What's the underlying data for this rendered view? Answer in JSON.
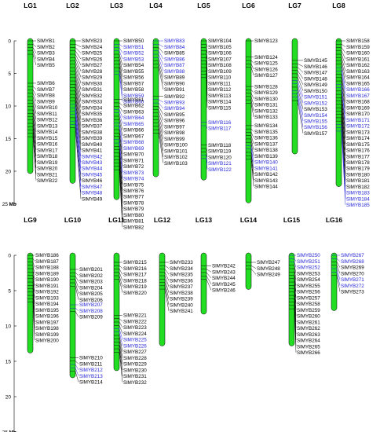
{
  "colors": {
    "chromosome": "#22dd22",
    "chromosome_stroke": "#000000",
    "gene_default": "#000000",
    "gene_highlight": "#1f1fd6"
  },
  "scale": {
    "unit": "Mb",
    "ticks": [
      0,
      5,
      10,
      15,
      20,
      25
    ]
  },
  "panels": [
    {
      "linkage_groups": [
        {
          "name": "LG1",
          "length": 20.0,
          "markers": [
            {
              "pos": 0.0,
              "genes": [
                "SlMYB1",
                "SlMYB2",
                "SlMYB3",
                "SlMYB4",
                "SlMYB5"
              ]
            },
            {
              "pos": 6.5,
              "genes": [
                "SlMYB6",
                "SlMYB7",
                "SlMYB8",
                "SlMYB9",
                "SlMYB10",
                "SlMYB11",
                "SlMYB12",
                "SlMYB13",
                "SlMYB14",
                "SlMYB15",
                "SlMYB16",
                "SlMYB17",
                "SlMYB18",
                "SlMYB19",
                "SlMYB20",
                "SlMYB21",
                "SlMYB22"
              ]
            }
          ]
        },
        {
          "name": "LG2",
          "length": 21.5,
          "markers": [
            {
              "pos": 0.0,
              "genes": [
                "SlMYB23",
                "SlMYB24",
                "SlMYB25",
                "SlMYB26",
                "SlMYB27",
                "SlMYB28",
                "SlMYB29",
                "SlMYB30",
                "SlMYB31",
                "SlMYB32",
                "SlMYB33",
                "SlMYB34",
                "SlMYB35",
                "SlMYB36",
                "SlMYB37",
                "SlMYB38",
                "SlMYB39",
                "SlMYB40",
                "SlMYB41",
                "SlMYB42",
                "SlMYB43",
                "SlMYB44",
                "SlMYB45",
                "SlMYB46",
                "SlMYB47",
                "SlMYB48",
                "SlMYB49"
              ],
              "blue": [
                "SlMYB42",
                "SlMYB43",
                "SlMYB44",
                "SlMYB45",
                "SlMYB47",
                "SlMYB48"
              ]
            }
          ]
        },
        {
          "name": "LG3",
          "length": 24.0,
          "markers": [
            {
              "pos": 0.0,
              "genes": [
                "SlMYB50",
                "SlMYB51",
                "SlMYB52",
                "SlMYB53",
                "SlMYB54",
                "SlMYB55",
                "SlMYB56",
                "SlMYB57",
                "SlMYB58",
                "SlMYB59",
                "SlMYB60"
              ],
              "blue": [
                "SlMYB51",
                "SlMYB52",
                "SlMYB53",
                "SlMYB59",
                "SlMYB60"
              ]
            },
            {
              "pos": 9.0,
              "genes": [
                "SlMYB61",
                "SlMYB62",
                "SlMYB63",
                "SlMYB64",
                "SlMYB65",
                "SlMYB66",
                "SlMYB67",
                "SlMYB68",
                "SlMYB69",
                "SlMYB70",
                "SlMYB71",
                "SlMYB72",
                "SlMYB73",
                "SlMYB74",
                "SlMYB75",
                "SlMYB76",
                "SlMYB77",
                "SlMYB78",
                "SlMYB79",
                "SlMYB80",
                "SlMYB81",
                "SlMYB82"
              ],
              "blue": [
                "SlMYB64",
                "SlMYB65",
                "SlMYB68",
                "SlMYB69",
                "SlMYB73",
                "SlMYB74"
              ]
            }
          ]
        },
        {
          "name": "LG4",
          "length": 20.5,
          "markers": [
            {
              "pos": 0.0,
              "genes": [
                "SlMYB83",
                "SlMYB84",
                "SlMYB85",
                "SlMYB86",
                "SlMYB87",
                "SlMYB88",
                "SlMYB89",
                "SlMYB90",
                "SlMYB91"
              ],
              "blue": [
                "SlMYB83",
                "SlMYB84",
                "SlMYB86",
                "SlMYB87",
                "SlMYB88"
              ]
            },
            {
              "pos": 8.5,
              "genes": [
                "SlMYB92",
                "SlMYB93",
                "SlMYB94",
                "SlMYB95",
                "SlMYB96",
                "SlMYB97",
                "SlMYB98",
                "SlMYB99",
                "SlMYB100",
                "SlMYB101",
                "SlMYB102",
                "SlMYB103"
              ],
              "blue": [
                "SlMYB93",
                "SlMYB94"
              ]
            }
          ]
        },
        {
          "name": "LG5",
          "length": 21.0,
          "markers": [
            {
              "pos": 0.0,
              "genes": [
                "SlMYB104",
                "SlMYB105",
                "SlMYB106",
                "SlMYB107",
                "SlMYB108",
                "SlMYB109",
                "SlMYB110",
                "SlMYB111",
                "SlMYB112",
                "SlMYB113",
                "SlMYB114",
                "SlMYB115"
              ]
            },
            {
              "pos": 12.5,
              "genes": [
                "SlMYB116",
                "SlMYB117"
              ],
              "blue": [
                "SlMYB116",
                "SlMYB117"
              ]
            },
            {
              "pos": 16.0,
              "genes": [
                "SlMYB118",
                "SlMYB119",
                "SlMYB120",
                "SlMYB121",
                "SlMYB122"
              ],
              "blue": [
                "SlMYB121",
                "SlMYB122"
              ]
            }
          ]
        },
        {
          "name": "LG6",
          "length": 24.5,
          "markers": [
            {
              "pos": 0.0,
              "genes": [
                "SlMYB123"
              ]
            },
            {
              "pos": 2.5,
              "genes": [
                "SlMYB124",
                "SlMYB125",
                "SlMYB126",
                "SlMYB127"
              ]
            },
            {
              "pos": 7.0,
              "genes": [
                "SlMYB128",
                "SlMYB129",
                "SlMYB130",
                "SlMYB131",
                "SlMYB132",
                "SlMYB133"
              ]
            },
            {
              "pos": 13.0,
              "genes": [
                "SlMYB134",
                "SlMYB135",
                "SlMYB136",
                "SlMYB137",
                "SlMYB138",
                "SlMYB139",
                "SlMYB140",
                "SlMYB141",
                "SlMYB142",
                "SlMYB143",
                "SlMYB144"
              ],
              "blue": [
                "SlMYB140",
                "SlMYB141"
              ]
            }
          ]
        },
        {
          "name": "LG7",
          "length": 17.0,
          "markers": [
            {
              "pos": 3.0,
              "genes": [
                "SlMYB145",
                "SlMYB146",
                "SlMYB147",
                "SlMYB148",
                "SlMYB149",
                "SlMYB150",
                "SlMYB151",
                "SlMYB152",
                "SlMYB153",
                "SlMYB154",
                "SlMYB155",
                "SlMYB156",
                "SlMYB157"
              ],
              "blue": [
                "SlMYB151",
                "SlMYB152",
                "SlMYB154",
                "SlMYB155",
                "SlMYB156"
              ]
            }
          ]
        },
        {
          "name": "LG8",
          "length": 22.0,
          "markers": [
            {
              "pos": 0.0,
              "genes": [
                "SlMYB158",
                "SlMYB159",
                "SlMYB160",
                "SlMYB161",
                "SlMYB162",
                "SlMYB163",
                "SlMYB164",
                "SlMYB165",
                "SlMYB166",
                "SlMYB167",
                "SlMYB168",
                "SlMYB169",
                "SlMYB170",
                "SlMYB171",
                "SlMYB172",
                "SlMYB173",
                "SlMYB174",
                "SlMYB175",
                "SlMYB176",
                "SlMYB177",
                "SlMYB178",
                "SlMYB179",
                "SlMYB180",
                "SlMYB181",
                "SlMYB182",
                "SlMYB183",
                "SlMYB184",
                "SlMYB185"
              ],
              "blue": [
                "SlMYB166",
                "SlMYB167",
                "SlMYB171",
                "SlMYB172",
                "SlMYB183",
                "SlMYB184",
                "SlMYB185"
              ]
            }
          ]
        }
      ]
    },
    {
      "linkage_groups": [
        {
          "name": "LG9",
          "length": 13.5,
          "markers": [
            {
              "pos": 0.0,
              "genes": [
                "SlMYB186",
                "SlMYB187",
                "SlMYB188",
                "SlMYB189",
                "SlMYB190",
                "SlMYB191",
                "SlMYB192",
                "SlMYB193",
                "SlMYB194",
                "SlMYB195",
                "SlMYB196",
                "SlMYB197",
                "SlMYB198",
                "SlMYB199",
                "SlMYB200"
              ]
            }
          ]
        },
        {
          "name": "LG10",
          "length": 17.0,
          "markers": [
            {
              "pos": 2.0,
              "genes": [
                "SlMYB201",
                "SlMYB202",
                "SlMYB203",
                "SlMYB204",
                "SlMYB205",
                "SlMYB206"
              ]
            },
            {
              "pos": 7.0,
              "genes": [
                "SlMYB207",
                "SlMYB208",
                "SlMYB209"
              ],
              "blue": [
                "SlMYB207",
                "SlMYB208"
              ]
            },
            {
              "pos": 14.5,
              "genes": [
                "SlMYB210",
                "SlMYB211",
                "SlMYB212",
                "SlMYB213",
                "SlMYB214"
              ],
              "blue": [
                "SlMYB212",
                "SlMYB213"
              ]
            }
          ]
        },
        {
          "name": "LG11",
          "length": 16.0,
          "markers": [
            {
              "pos": 1.0,
              "genes": [
                "SlMYB215",
                "SlMYB216",
                "SlMYB217",
                "SlMYB218",
                "SlMYB219",
                "SlMYB220"
              ]
            },
            {
              "pos": 8.5,
              "genes": [
                "SlMYB221",
                "SlMYB222",
                "SlMYB223",
                "SlMYB224",
                "SlMYB225",
                "SlMYB226",
                "SlMYB227",
                "SlMYB228",
                "SlMYB229",
                "SlMYB230",
                "SlMYB231",
                "SlMYB232"
              ],
              "blue": [
                "SlMYB225",
                "SlMYB226"
              ]
            }
          ]
        },
        {
          "name": "LG12",
          "length": 12.5,
          "markers": [
            {
              "pos": 1.0,
              "genes": [
                "SlMYB233",
                "SlMYB234",
                "SlMYB235",
                "SlMYB236",
                "SlMYB237",
                "SlMYB238",
                "SlMYB239",
                "SlMYB240",
                "SlMYB241"
              ]
            }
          ]
        },
        {
          "name": "LG13",
          "length": 8.0,
          "markers": [
            {
              "pos": 1.5,
              "genes": [
                "SlMYB242",
                "SlMYB243",
                "SlMYB244",
                "SlMYB245",
                "SlMYB246"
              ]
            }
          ]
        },
        {
          "name": "LG14",
          "length": 4.5,
          "markers": [
            {
              "pos": 1.0,
              "genes": [
                "SlMYB247",
                "SlMYB248",
                "SlMYB249"
              ]
            }
          ]
        },
        {
          "name": "LG15",
          "length": 12.5,
          "markers": [
            {
              "pos": 0.0,
              "genes": [
                "SlMYB250",
                "SlMYB251",
                "SlMYB252",
                "SlMYB253",
                "SlMYB254",
                "SlMYB255",
                "SlMYB256",
                "SlMYB257",
                "SlMYB258",
                "SlMYB259",
                "SlMYB260",
                "SlMYB261",
                "SlMYB262",
                "SlMYB263",
                "SlMYB264",
                "SlMYB265",
                "SlMYB266"
              ],
              "blue": [
                "SlMYB250",
                "SlMYB251",
                "SlMYB252"
              ]
            }
          ]
        },
        {
          "name": "LG16",
          "length": 7.5,
          "markers": [
            {
              "pos": 0.0,
              "genes": [
                "SlMYB267",
                "SlMYB268",
                "SlMYB269",
                "SlMYB270",
                "SlMYB271",
                "SlMYB272",
                "SlMYB273"
              ],
              "blue": [
                "SlMYB267",
                "SlMYB268",
                "SlMYB271",
                "SlMYB272"
              ]
            }
          ]
        }
      ]
    }
  ]
}
